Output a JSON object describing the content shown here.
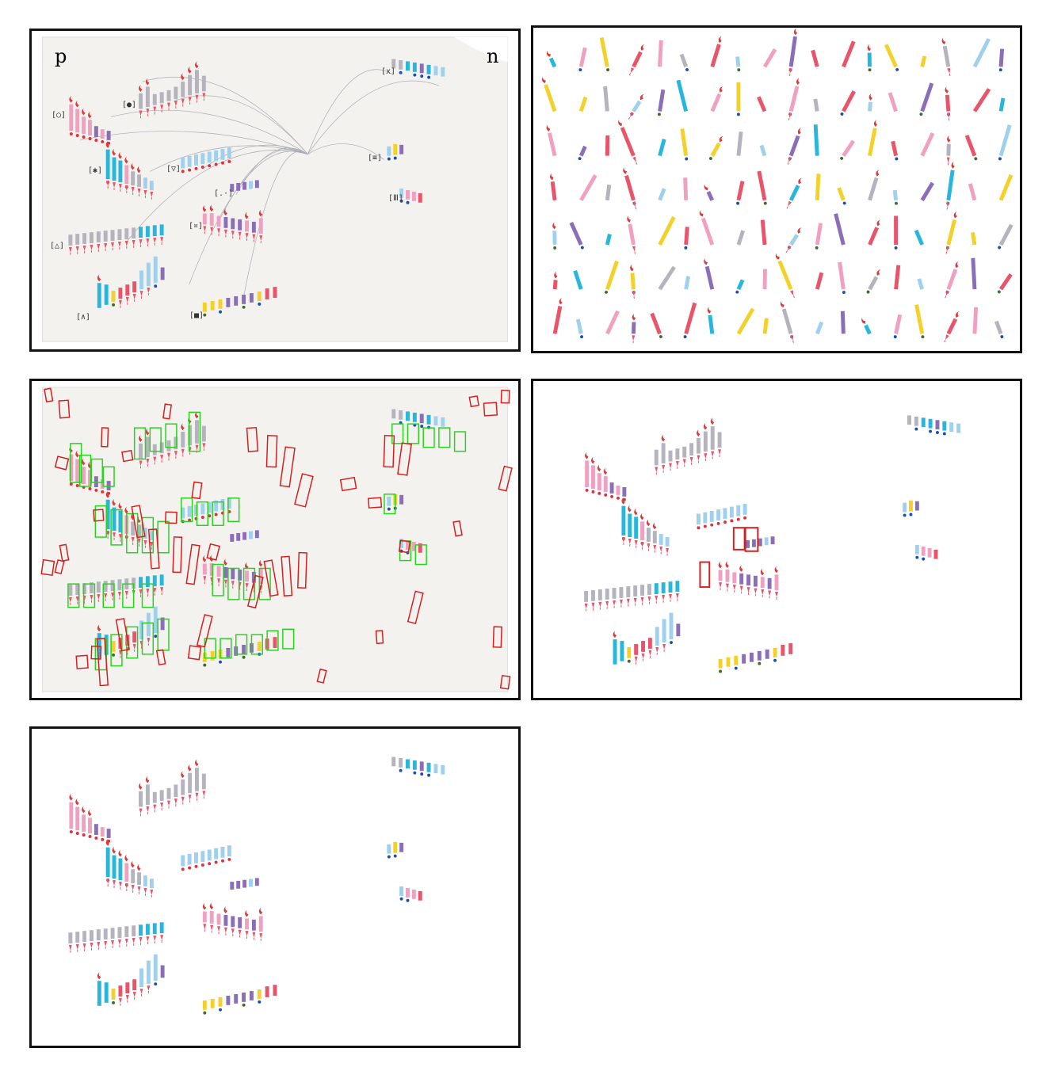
{
  "panels": [
    {
      "id": "p1",
      "name": "original-scan-panel"
    },
    {
      "id": "p2",
      "name": "extracted-pieces-grid-panel"
    },
    {
      "id": "p3",
      "name": "detection-boxes-panel"
    },
    {
      "id": "p4",
      "name": "reconstruction-with-errors-panel"
    },
    {
      "id": "p5",
      "name": "clean-reconstruction-panel"
    }
  ],
  "scan": {
    "letter_left": "p",
    "letter_right": "n",
    "labels": [
      "[x]",
      "[●]",
      "[○]",
      "[✱]",
      "[▽]",
      "[≡]",
      "[.·]",
      "[Ⅲ]",
      "[¤]",
      "[△]",
      "[∧]",
      "[■]"
    ]
  },
  "colors": {
    "pink": "#f0a0c0",
    "gray": "#b5b3bd",
    "cyan": "#29b6dc",
    "sky": "#9fd0ee",
    "purple": "#8a6fb8",
    "yellow": "#f4d12a",
    "red": "#e8556a",
    "flame": "#d93c3c",
    "dot_blue": "#1b4fae",
    "dot_green": "#3f6e2a",
    "dot_red": "#e0303a",
    "box_red": "#d51e1e",
    "box_green": "#26d41e",
    "paper": "#f4f2ef",
    "string": "#a9aab4"
  }
}
